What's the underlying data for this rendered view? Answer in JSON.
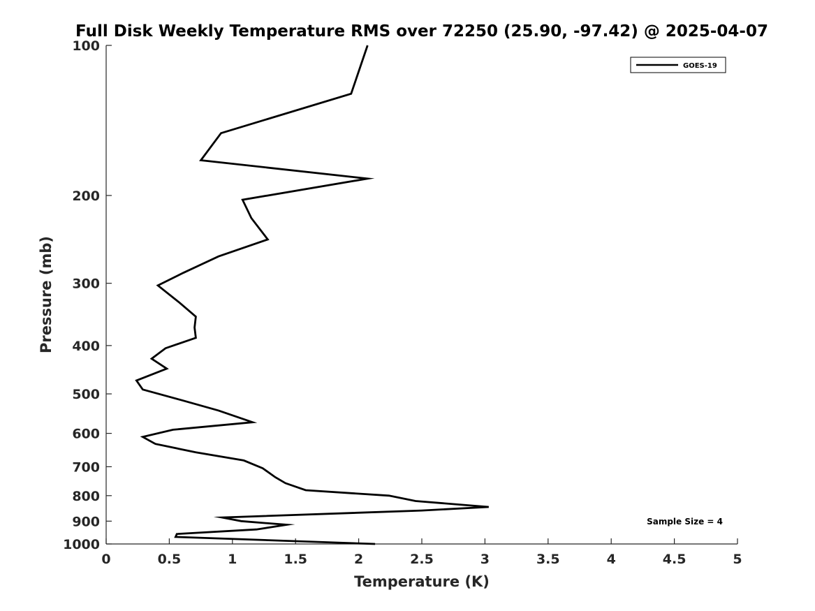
{
  "chart_data": {
    "type": "line",
    "title": "Full Disk Weekly Temperature RMS over 72250 (25.90, -97.42) @ 2025-04-07",
    "xlabel": "Temperature (K)",
    "ylabel": "Pressure (mb)",
    "xlim": [
      0,
      5
    ],
    "ylim": [
      100,
      1000
    ],
    "yscale": "log",
    "y_reversed": true,
    "x_ticks": [
      0,
      0.5,
      1,
      1.5,
      2,
      2.5,
      3,
      3.5,
      4,
      4.5,
      5
    ],
    "x_tick_labels": [
      "0",
      "0.5",
      "1",
      "1.5",
      "2",
      "2.5",
      "3",
      "3.5",
      "4",
      "4.5",
      "5"
    ],
    "y_ticks": [
      100,
      200,
      300,
      400,
      500,
      600,
      700,
      800,
      900,
      1000
    ],
    "y_tick_labels": [
      "100",
      "200",
      "300",
      "400",
      "500",
      "600",
      "700",
      "800",
      "900",
      "1000"
    ],
    "grid": false,
    "legend_position": "top-right",
    "annotation": "Sample Size = 4",
    "series": [
      {
        "name": "GOES-19",
        "color": "#000000",
        "x": [
          2.07,
          1.94,
          0.91,
          0.75,
          2.07,
          1.08,
          1.15,
          1.28,
          0.89,
          0.61,
          0.41,
          0.58,
          0.71,
          0.7,
          0.71,
          0.47,
          0.36,
          0.48,
          0.24,
          0.29,
          0.6,
          0.89,
          1.16,
          0.53,
          0.29,
          0.39,
          0.71,
          1.09,
          1.24,
          1.34,
          1.42,
          1.58,
          2.24,
          2.45,
          3.03,
          2.5,
          0.92,
          1.07,
          1.43,
          1.19,
          0.56,
          0.55,
          2.13
        ],
        "y": [
          100,
          125,
          150,
          170,
          185,
          204,
          222,
          245,
          265,
          286,
          303,
          328,
          350,
          368,
          386,
          405,
          425,
          445,
          470,
          490,
          515,
          540,
          570,
          590,
          610,
          630,
          655,
          680,
          705,
          735,
          755,
          780,
          800,
          820,
          843,
          857,
          885,
          900,
          915,
          935,
          955,
          968,
          1000
        ]
      }
    ]
  }
}
